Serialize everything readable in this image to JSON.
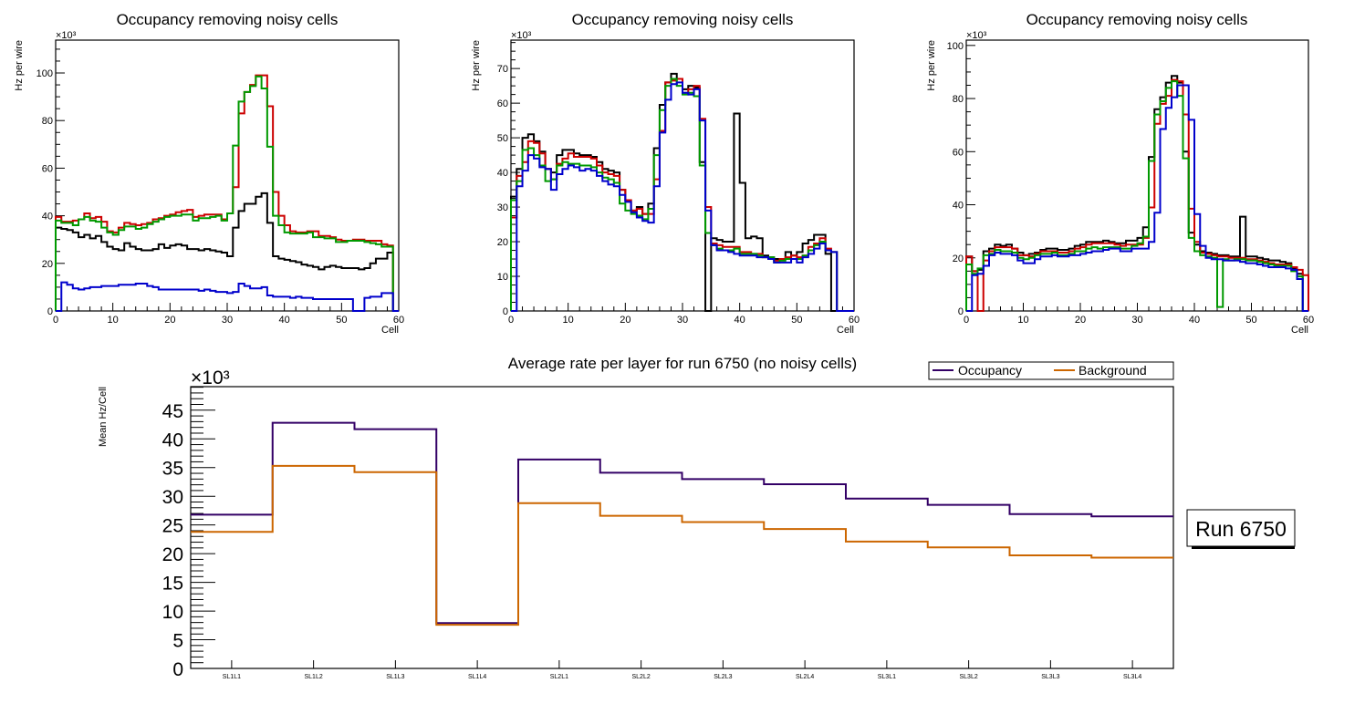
{
  "chart_data": [
    {
      "type": "line",
      "style": "step-histogram",
      "title": "Occupancy removing noisy cells",
      "xlabel": "Cell",
      "ylabel": "Hz per wire",
      "y_multiplier_label": "×10³",
      "xlim": [
        0,
        60
      ],
      "ylim": [
        0,
        113.8
      ],
      "xticks": [
        0,
        10,
        20,
        30,
        40,
        50,
        60
      ],
      "yticks": [
        0,
        20,
        40,
        60,
        80,
        100
      ],
      "units": "thousands (x10^3)",
      "series": [
        {
          "name": "black",
          "color": "#000000",
          "values": [
            35,
            34.5,
            34,
            33,
            31,
            32,
            30.5,
            31.5,
            29,
            27,
            26,
            25.5,
            28.5,
            27,
            26,
            25.5,
            25.5,
            26,
            28,
            26.5,
            27.5,
            28,
            27.5,
            26,
            26,
            25.5,
            26,
            25.5,
            25,
            24.5,
            23,
            35,
            42,
            45,
            45,
            48,
            49.5,
            37,
            23,
            22,
            21.5,
            21,
            20.5,
            19.5,
            19,
            18.5,
            17.5,
            18.5,
            19,
            18.5,
            18,
            18,
            18,
            17.5,
            18,
            20,
            22,
            22,
            24.5,
            0
          ]
        },
        {
          "name": "red",
          "color": "#cc0000",
          "values": [
            39.5,
            37.5,
            37.5,
            38,
            38.5,
            41,
            39,
            39.5,
            37.5,
            33.5,
            33,
            35,
            37,
            36.5,
            36,
            36.5,
            37,
            38.5,
            39,
            40,
            40.5,
            41.5,
            42,
            42.5,
            39.5,
            40,
            40.5,
            40.5,
            40.5,
            38.5,
            41,
            52,
            83,
            92,
            95,
            99,
            99,
            86,
            50,
            40,
            36,
            33.5,
            33,
            33,
            33.5,
            33.5,
            31.5,
            31.5,
            31,
            30,
            29.5,
            29.5,
            30,
            30,
            29.5,
            29.5,
            29.5,
            28,
            27.5,
            0
          ]
        },
        {
          "name": "green",
          "color": "#009900",
          "values": [
            38,
            37,
            37,
            36,
            38.5,
            39.5,
            38,
            37.5,
            35,
            33,
            32,
            34,
            35.5,
            35.5,
            34.5,
            35,
            36.5,
            37.5,
            38.5,
            39.5,
            40,
            40,
            40.5,
            40.5,
            38,
            39,
            39,
            39.5,
            40,
            38,
            41,
            69.5,
            88,
            92,
            94.5,
            98.5,
            93.5,
            69,
            40,
            36,
            33,
            32.5,
            32.5,
            32.5,
            33,
            31,
            31,
            30.5,
            30.5,
            29,
            29,
            29.5,
            29.5,
            29.5,
            29,
            28.5,
            28,
            27,
            27,
            0
          ]
        },
        {
          "name": "blue",
          "color": "#0000cc",
          "values": [
            0,
            12,
            11,
            9.5,
            9,
            9.5,
            10,
            10,
            10.5,
            10.5,
            10.5,
            11,
            11,
            11,
            11.5,
            11.5,
            10.5,
            10,
            9,
            9,
            9,
            9,
            9,
            9,
            9,
            8.5,
            9,
            8.5,
            8,
            8,
            7.5,
            8,
            11.5,
            10.5,
            9.5,
            9.5,
            10,
            6.5,
            6,
            6,
            6,
            5.5,
            6,
            5.5,
            5.5,
            5,
            5,
            5,
            5,
            5,
            5,
            5,
            0,
            0,
            5.5,
            6,
            6,
            7.5,
            7.5,
            0
          ]
        }
      ]
    },
    {
      "type": "line",
      "style": "step-histogram",
      "title": "Occupancy removing noisy cells",
      "xlabel": "Cell",
      "ylabel": "Hz per wire",
      "y_multiplier_label": "×10³",
      "xlim": [
        0,
        60
      ],
      "ylim": [
        0,
        78.2
      ],
      "xticks": [
        0,
        10,
        20,
        30,
        40,
        50,
        60
      ],
      "yticks": [
        0,
        10,
        20,
        30,
        40,
        50,
        60,
        70
      ],
      "units": "thousands (x10^3)",
      "series": [
        {
          "name": "black",
          "color": "#000000",
          "values": [
            33,
            41,
            50,
            51,
            49,
            46,
            41,
            40,
            45,
            46.5,
            46.5,
            45.5,
            45,
            45,
            44.5,
            43,
            41,
            40.5,
            40,
            35,
            32,
            29,
            30,
            28,
            31,
            47,
            59.5,
            66,
            68.5,
            67,
            64,
            65,
            64.5,
            43,
            0,
            21,
            20.5,
            20,
            20,
            57,
            37,
            21,
            21.5,
            21,
            16,
            15.5,
            15,
            15,
            17,
            16,
            17,
            19.5,
            20.5,
            22,
            22,
            16.5,
            0,
            0,
            0,
            0
          ]
        },
        {
          "name": "red",
          "color": "#cc0000",
          "values": [
            27,
            39,
            43,
            49,
            48.5,
            45.5,
            41,
            38,
            42.5,
            44,
            45.5,
            44.5,
            44.5,
            44.5,
            44,
            42,
            40,
            39.5,
            39,
            35,
            32,
            29,
            29.5,
            28,
            28,
            38,
            52,
            66,
            66.5,
            67,
            63,
            64,
            65,
            55.5,
            30,
            19.5,
            19,
            18.5,
            18.5,
            18.5,
            17,
            17,
            16.5,
            16.5,
            15.5,
            15,
            14.5,
            15,
            15.5,
            16,
            15.5,
            16,
            18.5,
            19.5,
            21,
            18,
            17,
            0,
            0,
            0
          ]
        },
        {
          "name": "green",
          "color": "#009900",
          "values": [
            32,
            37.5,
            46.5,
            47,
            45,
            42,
            37.5,
            38,
            42,
            43,
            42.5,
            42.5,
            42,
            42,
            41.5,
            40,
            38.5,
            38,
            37,
            31,
            29,
            28,
            27.5,
            26.5,
            29.5,
            45,
            58,
            65,
            67,
            65,
            62.5,
            63,
            62,
            42,
            22.5,
            19,
            18,
            17.5,
            17.5,
            18,
            16.5,
            16.5,
            16.5,
            16,
            15.5,
            15.5,
            14,
            14.5,
            15,
            15,
            15,
            16,
            17.5,
            19,
            20,
            17.5,
            17,
            0,
            0,
            0
          ]
        },
        {
          "name": "blue",
          "color": "#0000cc",
          "values": [
            0,
            36,
            40.5,
            45,
            44,
            41.5,
            41,
            35,
            39.5,
            41,
            42,
            41.5,
            40.5,
            41,
            40.5,
            39,
            37.5,
            36.5,
            36,
            33.5,
            31.5,
            28.5,
            27,
            26,
            25.5,
            36,
            51.5,
            61,
            65.5,
            66,
            63,
            62.5,
            64,
            55,
            29,
            19,
            17.5,
            17.5,
            17,
            16.5,
            16,
            16,
            16,
            15.5,
            15.5,
            15,
            14,
            14,
            14,
            15,
            14,
            15.5,
            16.5,
            18,
            19.5,
            17.5,
            17,
            0,
            0,
            0
          ]
        }
      ]
    },
    {
      "type": "line",
      "style": "step-histogram",
      "title": "Occupancy removing noisy cells",
      "xlabel": "Cell",
      "ylabel": "Hz per wire",
      "y_multiplier_label": "×10³",
      "xlim": [
        0,
        60
      ],
      "ylim": [
        0,
        102
      ],
      "xticks": [
        0,
        10,
        20,
        30,
        40,
        50,
        60
      ],
      "yticks": [
        0,
        20,
        40,
        60,
        80,
        100
      ],
      "units": "thousands (x10^3)",
      "series": [
        {
          "name": "black",
          "color": "#000000",
          "values": [
            20.5,
            15,
            15.5,
            22.5,
            23.5,
            25,
            24.5,
            25,
            23.5,
            22,
            21,
            21.5,
            22,
            23,
            23.5,
            23.5,
            23,
            23,
            23.5,
            24.5,
            25,
            26,
            26,
            26,
            26.5,
            26,
            25.5,
            25.5,
            26.5,
            26.5,
            27.5,
            31.5,
            58,
            76,
            80.5,
            86,
            88.5,
            86,
            60,
            29.5,
            25,
            22.5,
            22,
            21.5,
            21,
            21,
            20.5,
            20.5,
            35.5,
            20.5,
            20.5,
            20,
            19.5,
            19,
            19,
            18.5,
            18,
            16,
            14,
            0
          ]
        },
        {
          "name": "red",
          "color": "#cc0000",
          "values": [
            20.5,
            15,
            0,
            19,
            22.5,
            24,
            24,
            24,
            23.5,
            21,
            21,
            20.5,
            21.5,
            22.5,
            22.5,
            22.5,
            22,
            22,
            22.5,
            23.5,
            24,
            25,
            25.5,
            25.5,
            25.5,
            25.5,
            25,
            24.5,
            25,
            25,
            25,
            27.5,
            39,
            70.5,
            78,
            81,
            87,
            86.5,
            74,
            38.5,
            26,
            22,
            21.5,
            21,
            20.5,
            20.5,
            20,
            20,
            20,
            19.5,
            19.5,
            19,
            18.5,
            18,
            17.5,
            17.5,
            17.5,
            16.5,
            15.5,
            13.5
          ]
        },
        {
          "name": "green",
          "color": "#009900",
          "values": [
            17.5,
            14,
            16,
            21,
            21.5,
            23,
            22.5,
            22.5,
            22,
            20,
            19.5,
            20,
            21,
            21.5,
            21.5,
            22,
            21,
            21,
            21.5,
            22.5,
            22.5,
            23.5,
            24,
            23.5,
            24,
            24,
            24,
            23.5,
            23.5,
            24.5,
            25.5,
            28,
            56.5,
            74,
            79,
            84,
            86.5,
            81,
            57.5,
            27.5,
            22.5,
            21,
            20.5,
            20,
            1.5,
            19.5,
            19,
            19.5,
            19.5,
            19,
            19,
            18.5,
            18,
            17.5,
            17,
            17,
            17,
            15,
            13,
            0
          ]
        },
        {
          "name": "blue",
          "color": "#0000cc",
          "values": [
            0,
            13.5,
            14,
            17,
            21,
            22,
            21.5,
            21.5,
            21,
            19,
            18,
            18,
            19.5,
            20.5,
            20.5,
            21,
            20.5,
            20.5,
            21,
            21,
            21.5,
            22,
            22.5,
            22.5,
            23,
            23.5,
            23.5,
            22.5,
            22.5,
            23.5,
            23.5,
            23.5,
            26,
            37,
            68.5,
            76.5,
            80.5,
            85,
            85,
            72,
            36.5,
            24.5,
            20,
            19.5,
            19.5,
            19,
            19,
            19,
            18.5,
            18,
            18,
            17.5,
            17,
            16.5,
            16.5,
            16.5,
            16,
            15.5,
            12,
            0
          ]
        }
      ]
    },
    {
      "type": "line",
      "style": "step-histogram",
      "title": "Average rate per layer for run 6750 (no noisy cells)",
      "xlabel": "",
      "ylabel": "Mean Hz/Cell",
      "y_multiplier_label": "×10³",
      "units": "thousands (x10^3)",
      "categories": [
        "SL1L1",
        "SL1L2",
        "SL1L3",
        "SL1L4",
        "SL2L1",
        "SL2L2",
        "SL2L3",
        "SL2L4",
        "SL3L1",
        "SL3L2",
        "SL3L3",
        "SL3L4"
      ],
      "ylim": [
        0,
        49.1
      ],
      "yticks": [
        0,
        5,
        10,
        15,
        20,
        25,
        30,
        35,
        40,
        45
      ],
      "legend": {
        "placement": "top-right",
        "entries": [
          "Occupancy",
          "Background"
        ]
      },
      "series": [
        {
          "name": "Occupancy",
          "color": "#330066",
          "values": [
            26.8,
            42.8,
            41.7,
            7.9,
            36.4,
            34.1,
            33.0,
            32.1,
            29.6,
            28.5,
            26.9,
            26.5
          ]
        },
        {
          "name": "Background",
          "color": "#cc6600",
          "values": [
            23.8,
            35.3,
            34.2,
            7.6,
            28.8,
            26.6,
            25.5,
            24.3,
            22.1,
            21.1,
            19.7,
            19.3
          ]
        }
      ],
      "annotation": "Run 6750"
    }
  ]
}
